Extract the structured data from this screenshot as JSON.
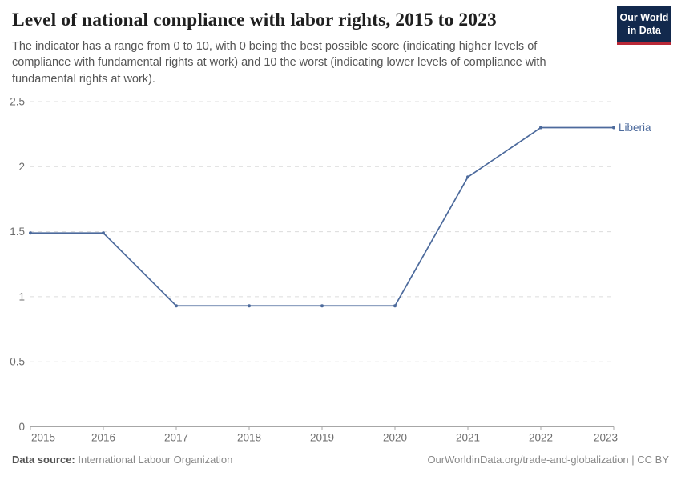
{
  "header": {
    "title": "Level of national compliance with labor rights, 2015 to 2023",
    "subtitle": "The indicator has a range from 0 to 10, with 0 being the best possible score (indicating higher levels of compliance with fundamental rights at work) and 10 the worst (indicating lower levels of compliance with fundamental rights at work).",
    "logo": {
      "line1": "Our World",
      "line2": "in Data"
    }
  },
  "chart_data": {
    "type": "line",
    "title": "Level of national compliance with labor rights, 2015 to 2023",
    "x": [
      2015,
      2016,
      2017,
      2018,
      2019,
      2020,
      2021,
      2022,
      2023
    ],
    "series": [
      {
        "name": "Liberia",
        "values": [
          1.49,
          1.49,
          0.93,
          0.93,
          0.93,
          0.93,
          1.92,
          2.3,
          2.3
        ],
        "color": "#4c6a9c"
      }
    ],
    "xlabel": "",
    "ylabel": "",
    "ylim": [
      0,
      2.5
    ],
    "y_ticks": [
      0,
      0.5,
      1,
      1.5,
      2,
      2.5
    ],
    "grid": "horizontal-dashed",
    "legend_position": "end-of-line-label"
  },
  "footer": {
    "source_label": "Data source:",
    "source_value": "International Labour Organization",
    "attribution": "OurWorldinData.org/trade-and-globalization | CC BY"
  },
  "colors": {
    "line": "#4c6a9c",
    "grid": "#dcdcdc",
    "axis": "#a7a7a7",
    "tick_label": "#6e6e6e",
    "logo_bg": "#12294d",
    "logo_stripe": "#b92837"
  }
}
